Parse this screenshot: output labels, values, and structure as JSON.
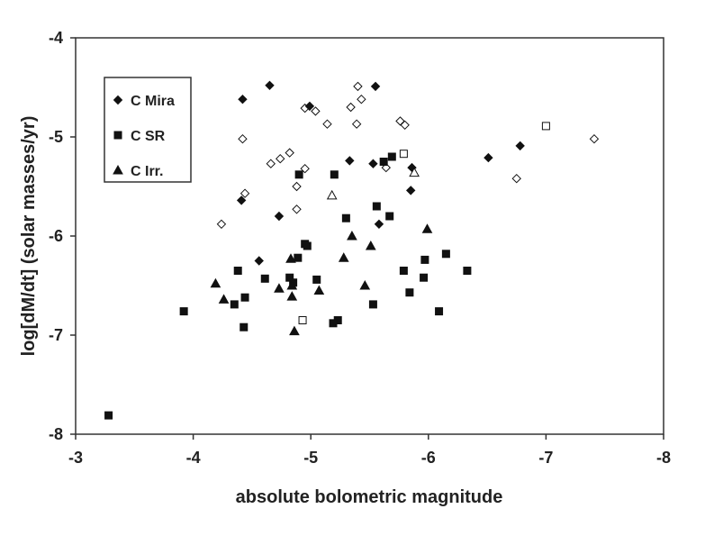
{
  "chart_data": {
    "type": "scatter",
    "xlabel": "absolute bolometric magnitude",
    "ylabel": "log[dM/dt]  (solar masses/yr)",
    "xlim": [
      -3,
      -8
    ],
    "ylim": [
      -8,
      -4
    ],
    "x_reversed": true,
    "xticks": [
      -3,
      -4,
      -5,
      -6,
      -7,
      -8
    ],
    "yticks": [
      -4,
      -5,
      -6,
      -7,
      -8
    ],
    "grid": false,
    "legend_position": "top-left",
    "series": [
      {
        "name": "C Mira",
        "marker": "diamond",
        "filled_points": [
          [
            -4.42,
            -4.62
          ],
          [
            -4.65,
            -4.48
          ],
          [
            -5.55,
            -4.49
          ],
          [
            -4.99,
            -4.69
          ],
          [
            -5.33,
            -5.24
          ],
          [
            -5.53,
            -5.27
          ],
          [
            -5.86,
            -5.31
          ],
          [
            -5.85,
            -5.54
          ],
          [
            -4.41,
            -5.64
          ],
          [
            -4.73,
            -5.8
          ],
          [
            -5.58,
            -5.88
          ],
          [
            -4.56,
            -6.25
          ],
          [
            -6.51,
            -5.21
          ],
          [
            -6.78,
            -5.09
          ]
        ],
        "open_points": [
          [
            -5.4,
            -4.49
          ],
          [
            -5.43,
            -4.62
          ],
          [
            -5.34,
            -4.7
          ],
          [
            -4.95,
            -4.71
          ],
          [
            -5.04,
            -4.74
          ],
          [
            -5.14,
            -4.87
          ],
          [
            -5.39,
            -4.87
          ],
          [
            -5.76,
            -4.84
          ],
          [
            -5.8,
            -4.88
          ],
          [
            -4.42,
            -5.02
          ],
          [
            -4.82,
            -5.16
          ],
          [
            -4.74,
            -5.22
          ],
          [
            -4.66,
            -5.27
          ],
          [
            -4.95,
            -5.32
          ],
          [
            -5.64,
            -5.31
          ],
          [
            -4.88,
            -5.5
          ],
          [
            -4.44,
            -5.57
          ],
          [
            -4.88,
            -5.73
          ],
          [
            -4.24,
            -5.88
          ],
          [
            -6.75,
            -5.42
          ],
          [
            -7.41,
            -5.02
          ]
        ]
      },
      {
        "name": "C SR",
        "marker": "square",
        "filled_points": [
          [
            -5.69,
            -5.2
          ],
          [
            -5.62,
            -5.25
          ],
          [
            -4.9,
            -5.38
          ],
          [
            -5.2,
            -5.38
          ],
          [
            -5.56,
            -5.7
          ],
          [
            -5.3,
            -5.82
          ],
          [
            -5.67,
            -5.8
          ],
          [
            -6.15,
            -6.18
          ],
          [
            -4.95,
            -6.08
          ],
          [
            -4.97,
            -6.1
          ],
          [
            -5.97,
            -6.24
          ],
          [
            -4.89,
            -6.22
          ],
          [
            -4.38,
            -6.35
          ],
          [
            -5.79,
            -6.35
          ],
          [
            -6.33,
            -6.35
          ],
          [
            -5.96,
            -6.42
          ],
          [
            -4.82,
            -6.42
          ],
          [
            -4.61,
            -6.43
          ],
          [
            -5.05,
            -6.44
          ],
          [
            -4.85,
            -6.47
          ],
          [
            -5.84,
            -6.57
          ],
          [
            -4.44,
            -6.62
          ],
          [
            -4.35,
            -6.69
          ],
          [
            -5.53,
            -6.69
          ],
          [
            -6.09,
            -6.76
          ],
          [
            -3.92,
            -6.76
          ],
          [
            -5.23,
            -6.85
          ],
          [
            -5.19,
            -6.88
          ],
          [
            -4.43,
            -6.92
          ],
          [
            -3.28,
            -7.81
          ]
        ],
        "open_points": [
          [
            -5.79,
            -5.17
          ],
          [
            -7.0,
            -4.89
          ],
          [
            -4.93,
            -6.85
          ]
        ]
      },
      {
        "name": "C Irr.",
        "marker": "triangle",
        "filled_points": [
          [
            -5.99,
            -5.93
          ],
          [
            -5.35,
            -6.0
          ],
          [
            -5.51,
            -6.1
          ],
          [
            -5.28,
            -6.22
          ],
          [
            -4.83,
            -6.23
          ],
          [
            -4.19,
            -6.48
          ],
          [
            -5.46,
            -6.5
          ],
          [
            -4.73,
            -6.53
          ],
          [
            -4.84,
            -6.5
          ],
          [
            -5.07,
            -6.55
          ],
          [
            -4.84,
            -6.61
          ],
          [
            -4.26,
            -6.64
          ],
          [
            -4.86,
            -6.96
          ]
        ],
        "open_points": [
          [
            -5.18,
            -5.59
          ],
          [
            -5.88,
            -5.36
          ]
        ]
      }
    ]
  }
}
